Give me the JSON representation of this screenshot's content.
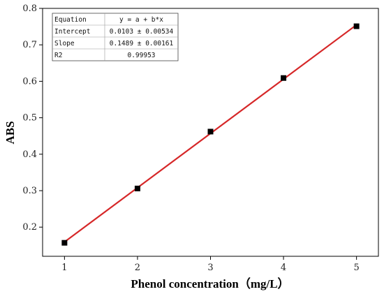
{
  "chart_data": {
    "type": "scatter",
    "xlabel": "Phenol concentration（mg/L）",
    "ylabel": "ABS",
    "xlim": [
      0.7,
      5.3
    ],
    "ylim": [
      0.12,
      0.8
    ],
    "x_ticks": [
      1,
      2,
      3,
      4,
      5
    ],
    "y_ticks": [
      0.2,
      0.3,
      0.4,
      0.5,
      0.6,
      0.7,
      0.8
    ],
    "grid": false,
    "series": [
      {
        "marker": "square",
        "color": "#000000",
        "x": [
          1,
          2,
          3,
          4,
          5
        ],
        "y": [
          0.157,
          0.306,
          0.462,
          0.609,
          0.751
        ]
      }
    ],
    "fit_line": {
      "color": "#d62728",
      "intercept": 0.0103,
      "slope": 0.1489,
      "x_range": [
        1,
        5
      ]
    },
    "fit_table": {
      "rows": [
        [
          "Equation",
          "y = a + b*x"
        ],
        [
          "Intercept",
          "0.0103 ± 0.00534"
        ],
        [
          "Slope",
          "0.1489 ± 0.00161"
        ],
        [
          "R2",
          "0.99953"
        ]
      ]
    }
  }
}
